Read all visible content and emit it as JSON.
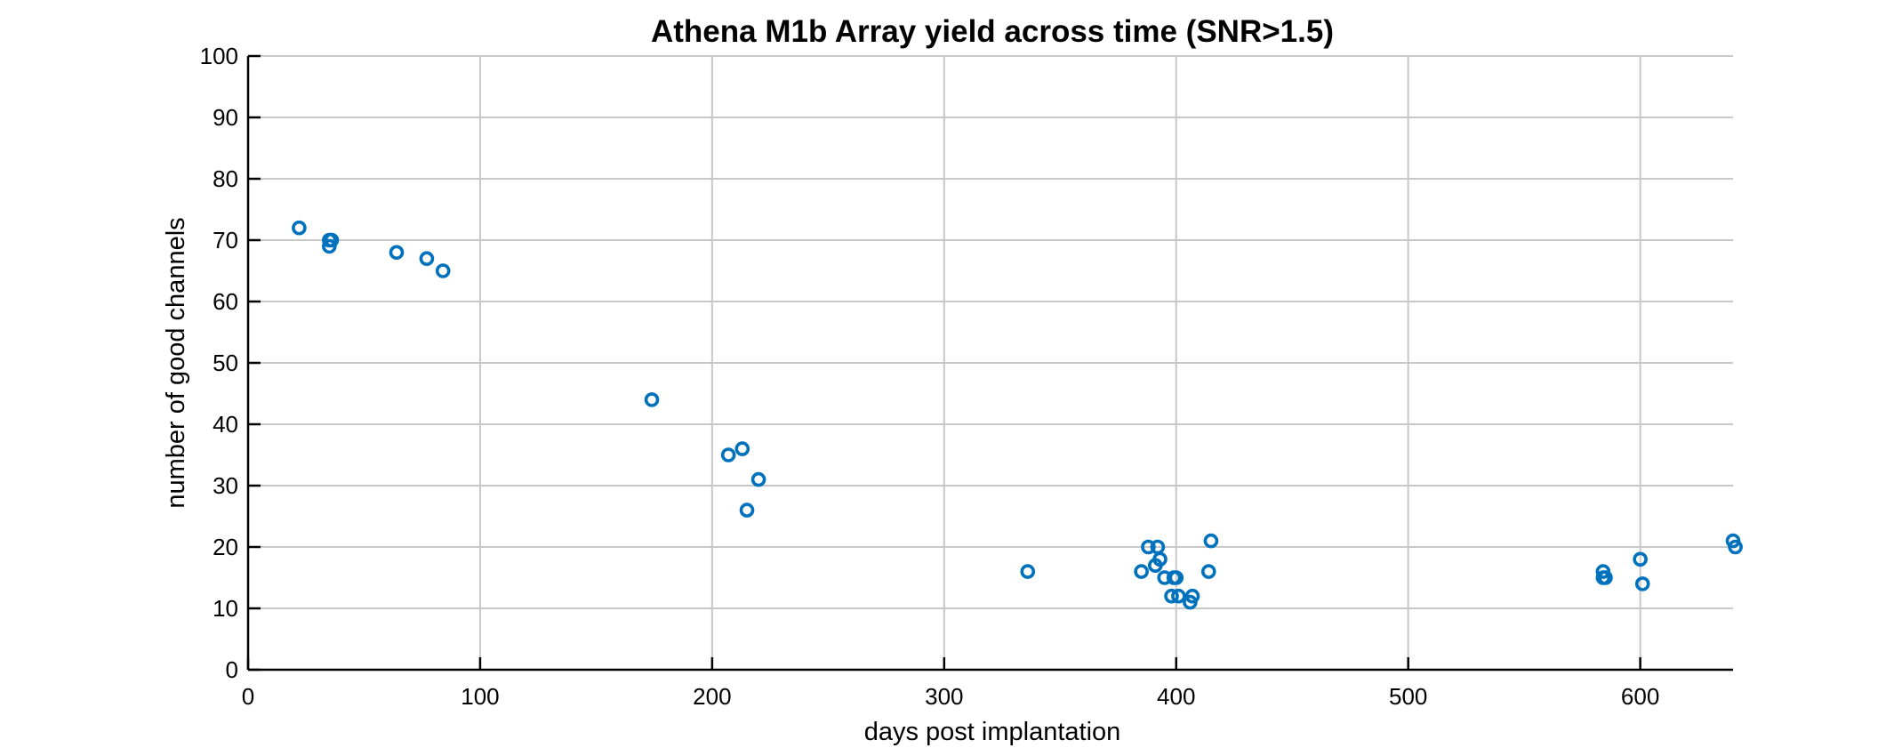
{
  "chart_data": {
    "type": "scatter",
    "title": "Athena M1b Array yield across time (SNR>1.5)",
    "xlabel": "days post implantation",
    "ylabel": "number of good channels",
    "xlim": [
      0,
      640
    ],
    "ylim": [
      0,
      100
    ],
    "xticks": [
      0,
      100,
      200,
      300,
      400,
      500,
      600
    ],
    "yticks": [
      0,
      10,
      20,
      30,
      40,
      50,
      60,
      70,
      80,
      90,
      100
    ],
    "grid": true,
    "marker": "circle-open",
    "marker_color": "#0072BD",
    "series": [
      {
        "x": [
          22,
          35,
          36,
          35,
          64,
          77,
          84,
          174,
          207,
          213,
          215,
          220,
          336,
          385,
          388,
          391,
          392,
          393,
          395,
          398,
          399,
          400,
          401,
          406,
          407,
          414,
          415,
          584,
          584,
          585,
          600,
          601,
          640,
          641
        ],
        "y": [
          72,
          69,
          70,
          70,
          68,
          67,
          65,
          44,
          35,
          36,
          26,
          31,
          16,
          16,
          20,
          17,
          20,
          18,
          15,
          12,
          15,
          15,
          12,
          11,
          12,
          16,
          21,
          16,
          15,
          15,
          18,
          14,
          21,
          20
        ]
      }
    ]
  }
}
